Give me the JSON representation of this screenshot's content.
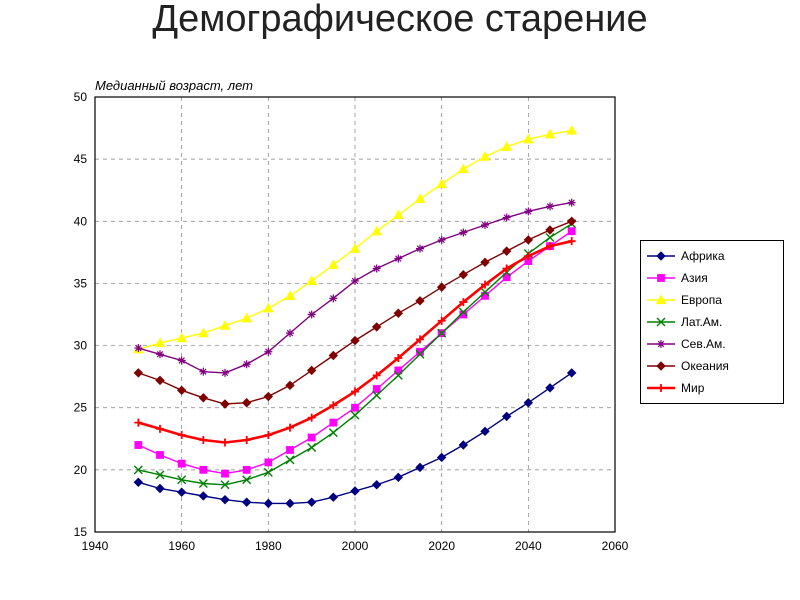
{
  "page": {
    "title": "Демографическое старение",
    "subtitle": "Медианный возраст, лет"
  },
  "chart": {
    "type": "line",
    "background_color": "#ffffff",
    "grid_color": "#808080",
    "grid_dash": "4 4",
    "axis_color": "#000000",
    "title_fontsize": 38,
    "subtitle_fontsize": 13,
    "label_fontsize": 12,
    "xlim": [
      1940,
      2060
    ],
    "xtick_step": 20,
    "ylim": [
      15,
      50
    ],
    "ytick_step": 5,
    "x_values": [
      1950,
      1955,
      1960,
      1965,
      1970,
      1975,
      1980,
      1985,
      1990,
      1995,
      2000,
      2005,
      2010,
      2015,
      2020,
      2025,
      2030,
      2035,
      2040,
      2045,
      2050
    ],
    "series": [
      {
        "name": "Африка",
        "color": "#000080",
        "line_width": 1.4,
        "marker": "diamond",
        "marker_size": 5,
        "y": [
          19.0,
          18.5,
          18.2,
          17.9,
          17.6,
          17.4,
          17.3,
          17.3,
          17.4,
          17.8,
          18.3,
          18.8,
          19.4,
          20.2,
          21.0,
          22.0,
          23.1,
          24.3,
          25.4,
          26.6,
          27.8
        ]
      },
      {
        "name": "Азия",
        "color": "#ff00ff",
        "line_width": 1.4,
        "marker": "square",
        "marker_size": 5,
        "y": [
          22.0,
          21.2,
          20.5,
          20.0,
          19.7,
          20.0,
          20.6,
          21.6,
          22.6,
          23.8,
          25.0,
          26.5,
          28.0,
          29.5,
          31.0,
          32.5,
          34.0,
          35.5,
          36.8,
          38.0,
          39.2
        ]
      },
      {
        "name": "Европа",
        "color": "#ffff00",
        "line_width": 1.4,
        "marker": "triangle",
        "marker_size": 6,
        "y": [
          29.7,
          30.2,
          30.6,
          31.0,
          31.6,
          32.2,
          33.0,
          34.0,
          35.2,
          36.5,
          37.8,
          39.2,
          40.5,
          41.8,
          43.0,
          44.2,
          45.2,
          46.0,
          46.6,
          47.0,
          47.3
        ]
      },
      {
        "name": "Лат.Ам.",
        "color": "#008000",
        "line_width": 1.4,
        "marker": "x",
        "marker_size": 5,
        "y": [
          20.0,
          19.6,
          19.2,
          18.9,
          18.8,
          19.2,
          19.8,
          20.8,
          21.8,
          23.0,
          24.4,
          26.0,
          27.6,
          29.3,
          31.0,
          32.7,
          34.3,
          35.9,
          37.4,
          38.7,
          39.8
        ]
      },
      {
        "name": "Сев.Ам.",
        "color": "#800080",
        "line_width": 1.4,
        "marker": "star",
        "marker_size": 5,
        "y": [
          29.8,
          29.3,
          28.8,
          27.9,
          27.8,
          28.5,
          29.5,
          31.0,
          32.5,
          33.8,
          35.2,
          36.2,
          37.0,
          37.8,
          38.5,
          39.1,
          39.7,
          40.3,
          40.8,
          41.2,
          41.5
        ]
      },
      {
        "name": "Океания",
        "color": "#800000",
        "line_width": 1.4,
        "marker": "diamond",
        "marker_size": 5,
        "y": [
          27.8,
          27.2,
          26.4,
          25.8,
          25.3,
          25.4,
          25.9,
          26.8,
          28.0,
          29.2,
          30.4,
          31.5,
          32.6,
          33.6,
          34.7,
          35.7,
          36.7,
          37.6,
          38.5,
          39.3,
          40.0
        ]
      },
      {
        "name": "Мир",
        "color": "#ff0000",
        "line_width": 2.6,
        "marker": "plus",
        "marker_size": 5,
        "y": [
          23.8,
          23.3,
          22.8,
          22.4,
          22.2,
          22.4,
          22.8,
          23.4,
          24.2,
          25.2,
          26.3,
          27.6,
          29.0,
          30.5,
          32.0,
          33.5,
          34.9,
          36.2,
          37.2,
          38.0,
          38.4
        ]
      }
    ],
    "legend": {
      "border_color": "#000000",
      "bg": "#ffffff",
      "fontsize": 12,
      "swatch_line_length": 28
    }
  }
}
